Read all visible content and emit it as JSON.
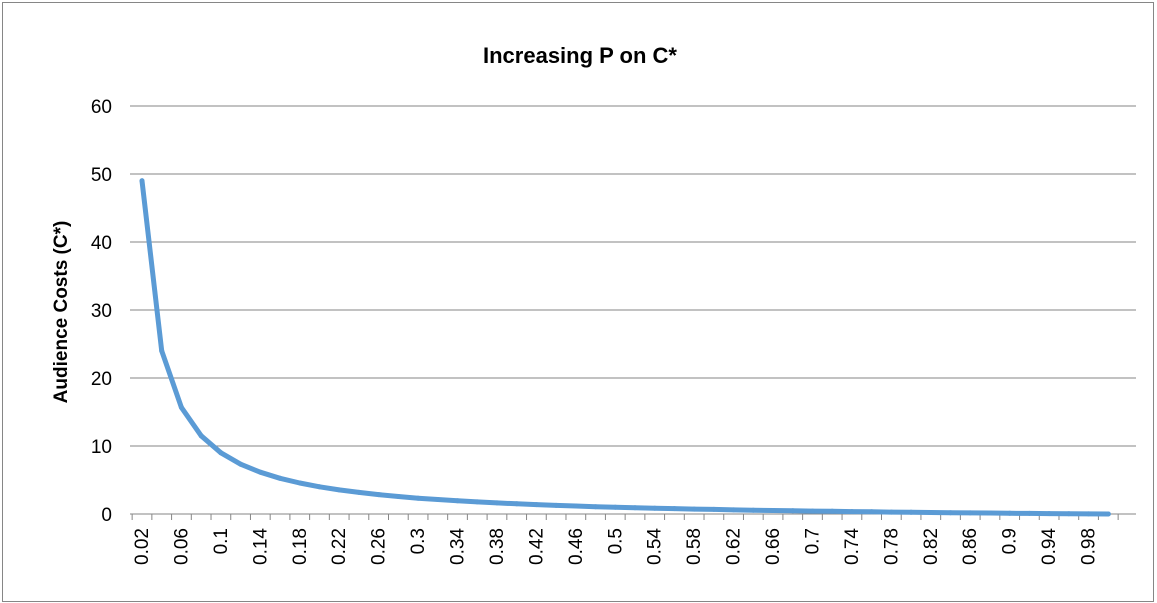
{
  "chart_data": {
    "type": "line",
    "title": "Increasing P on C*",
    "xlabel": "",
    "ylabel": "Audience Costs (C*)",
    "ylim": [
      0,
      60
    ],
    "y_ticks": [
      "0",
      "10",
      "20",
      "30",
      "40",
      "50",
      "60"
    ],
    "x_tick_labels": [
      "0.02",
      "0.06",
      "0.1",
      "0.14",
      "0.18",
      "0.22",
      "0.26",
      "0.3",
      "0.34",
      "0.38",
      "0.42",
      "0.46",
      "0.5",
      "0.54",
      "0.58",
      "0.62",
      "0.66",
      "0.7",
      "0.74",
      "0.78",
      "0.82",
      "0.86",
      "0.9",
      "0.94",
      "0.98"
    ],
    "grid": true,
    "legend": "none",
    "series": [
      {
        "color": "#5B9BD5",
        "x": [
          0.02,
          0.04,
          0.06,
          0.08,
          0.1,
          0.12,
          0.14,
          0.16,
          0.18,
          0.2,
          0.22,
          0.24,
          0.26,
          0.28,
          0.3,
          0.32,
          0.34,
          0.36,
          0.38,
          0.4,
          0.42,
          0.44,
          0.46,
          0.48,
          0.5,
          0.52,
          0.54,
          0.56,
          0.58,
          0.6,
          0.62,
          0.64,
          0.66,
          0.68,
          0.7,
          0.72,
          0.74,
          0.76,
          0.78,
          0.8,
          0.82,
          0.84,
          0.86,
          0.88,
          0.9,
          0.92,
          0.94,
          0.96,
          0.98,
          1.0
        ],
        "values": [
          49,
          24,
          15.67,
          11.5,
          9,
          7.33,
          6.14,
          5.25,
          4.56,
          4,
          3.55,
          3.17,
          2.85,
          2.57,
          2.33,
          2.13,
          1.94,
          1.78,
          1.63,
          1.5,
          1.38,
          1.27,
          1.17,
          1.08,
          1,
          0.92,
          0.85,
          0.79,
          0.72,
          0.67,
          0.61,
          0.56,
          0.52,
          0.47,
          0.43,
          0.39,
          0.35,
          0.32,
          0.28,
          0.25,
          0.22,
          0.19,
          0.16,
          0.14,
          0.11,
          0.09,
          0.06,
          0.04,
          0.02,
          0
        ]
      }
    ]
  }
}
